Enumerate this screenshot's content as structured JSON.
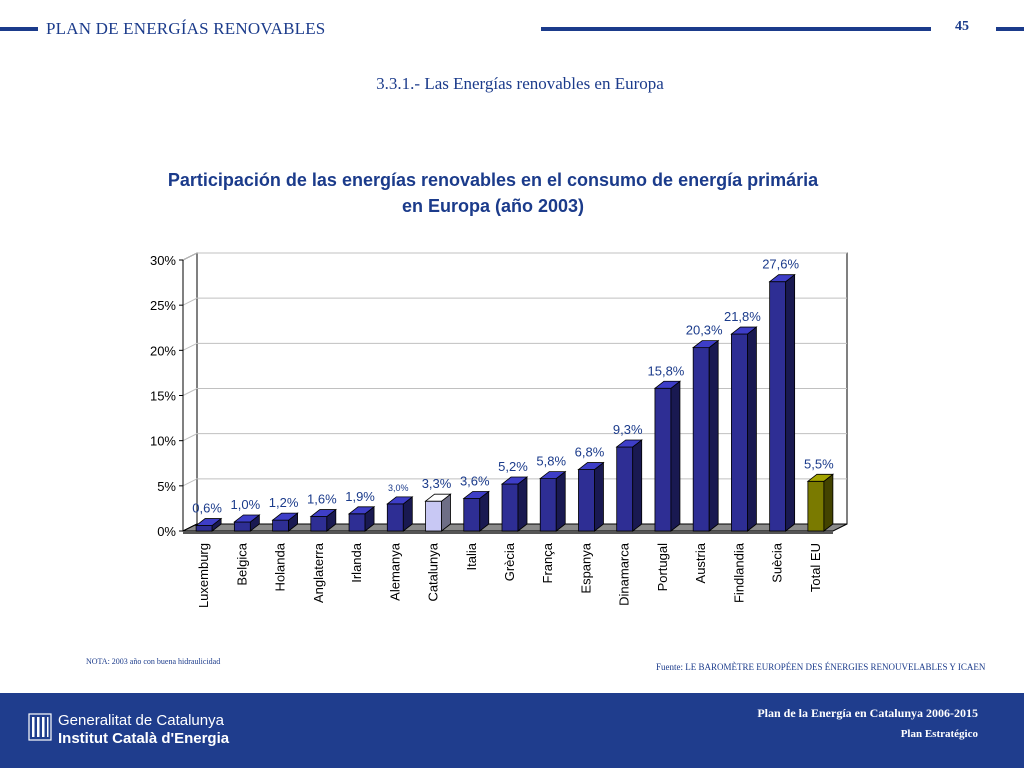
{
  "header": {
    "title": "PLAN DE ENERGÍAS RENOVABLES",
    "page_number": "45"
  },
  "section_title": "3.3.1.- Las Energías renovables en Europa",
  "colors": {
    "brand": "#1b3b8b",
    "bar": "#2e2e94",
    "highlight": "#c8c8f4",
    "total": "#7a7a00"
  },
  "chart_data": {
    "type": "bar",
    "title": "Participación de las energías renovables en el consumo de energía primária en Europa (año 2003)",
    "title_lines": [
      "Participación de las energías renovables en el consumo de energía primária",
      "en Europa (año 2003)"
    ],
    "xlabel": "",
    "ylabel": "",
    "ylim": [
      0,
      30
    ],
    "yticks": [
      0,
      5,
      10,
      15,
      20,
      25,
      30
    ],
    "ytick_labels": [
      "0%",
      "5%",
      "10%",
      "15%",
      "20%",
      "25%",
      "30%"
    ],
    "grid": true,
    "categories": [
      "Luxemburg",
      "Belgica",
      "Holanda",
      "Anglaterra",
      "Irlanda",
      "Alemanya",
      "Catalunya",
      "Italia",
      "Grècia",
      "França",
      "Espanya",
      "Dinamarca",
      "Portugal",
      "Austria",
      "Findlandia",
      "Suècia",
      "Total EU"
    ],
    "values": [
      0.6,
      1.0,
      1.2,
      1.6,
      1.9,
      3.0,
      3.3,
      3.6,
      5.2,
      5.8,
      6.8,
      9.3,
      15.8,
      20.3,
      21.8,
      27.6,
      5.5
    ],
    "data_labels": [
      "0,6%",
      "1,0%",
      "1,2%",
      "1,6%",
      "1,9%",
      "3,0%",
      "3,3%",
      "3,6%",
      "5,2%",
      "5,8%",
      "6,8%",
      "9,3%",
      "15,8%",
      "20,3%",
      "21,8%",
      "27,6%",
      "5,5%"
    ],
    "highlight_category": "Catalunya",
    "total_category": "Total EU"
  },
  "note": "NOTA: 2003 año con buena hidraulicidad",
  "source": "Fuente: LE BAROMÈTRE EUROPÉEN DES ÉNERGIES RENOUVELABLES Y ICAEN",
  "footer": {
    "org_line1": "Generalitat de Catalunya",
    "org_line2": "Institut Català d'Energia",
    "plan_line1": "Plan de la Energía en Catalunya 2006-2015",
    "plan_line2": "Plan Estratégico"
  }
}
